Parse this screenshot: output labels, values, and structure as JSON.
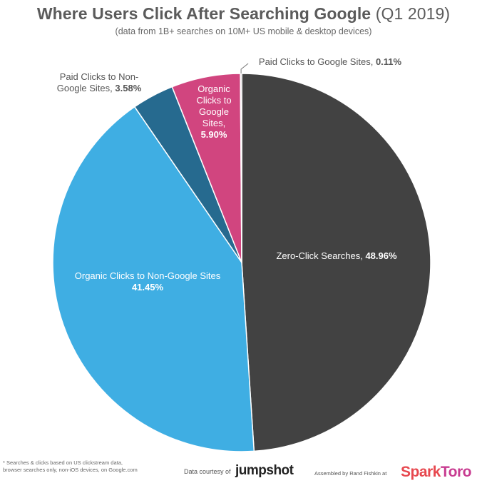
{
  "header": {
    "title_main": "Where Users Click After Searching Google",
    "title_suffix": "(Q1 2019)",
    "subtitle": "(data from 1B+ searches on 10M+ US mobile & desktop devices)"
  },
  "chart_data": {
    "type": "pie",
    "title": "Where Users Click After Searching Google (Q1 2019)",
    "subtitle": "(data from 1B+ searches on 10M+ US mobile & desktop devices)",
    "slices": [
      {
        "label": "Zero-Click Searches",
        "value": 48.96,
        "value_label": "48.96%",
        "color": "#424242"
      },
      {
        "label": "Organic Clicks to Non-Google Sites",
        "value": 41.45,
        "value_label": "41.45%",
        "color": "#3faee3"
      },
      {
        "label": "Paid Clicks to Non-Google Sites",
        "value": 3.58,
        "value_label": "3.58%",
        "color": "#266a8f"
      },
      {
        "label": "Organic Clicks to Google Sites",
        "value": 5.9,
        "value_label": "5.90%",
        "color": "#d1457f"
      },
      {
        "label": "Paid Clicks to Google Sites",
        "value": 0.11,
        "value_label": "0.11%",
        "color": "#9b9b9b"
      }
    ],
    "start_angle_deg": 0,
    "direction": "clockwise"
  },
  "footer": {
    "footnote_line1": "* Searches & clicks based on US clickstream data,",
    "footnote_line2": "browser searches only, non-iOS devices, on Google.com",
    "courtesy": "Data courtesy of",
    "jumpshot": "jumpshot",
    "assembled": "Assembled by Rand Fishkin at",
    "sparktoro_part1": "Spark",
    "sparktoro_part2": "Toro"
  },
  "colors": {
    "zero_click": "#424242",
    "organic_non_google": "#3faee3",
    "paid_non_google": "#266a8f",
    "organic_google": "#d1457f",
    "paid_google": "#9b9b9b"
  }
}
